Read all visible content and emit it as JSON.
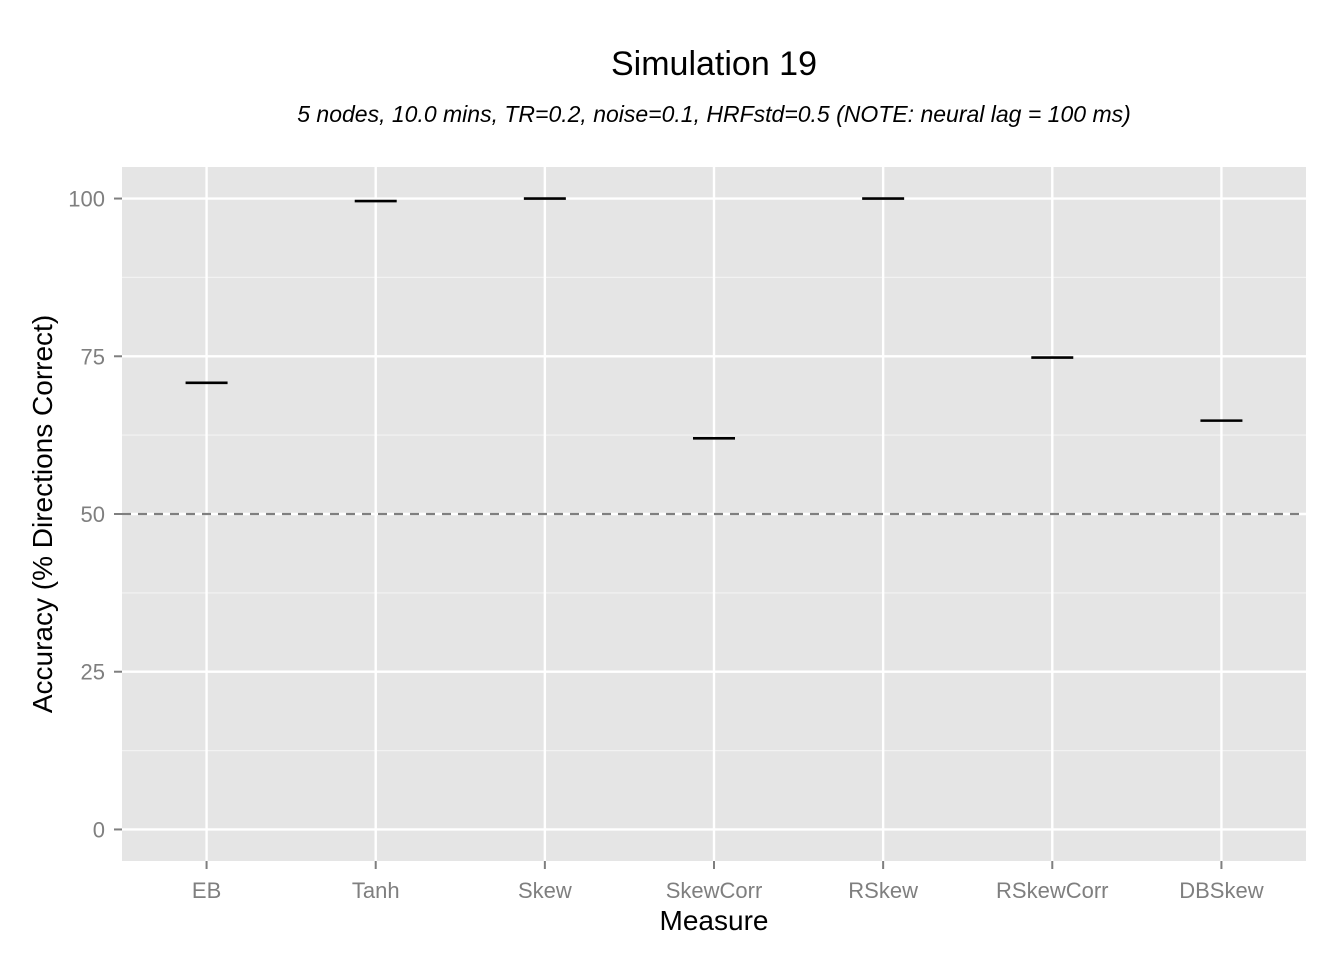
{
  "chart_data": {
    "type": "scatter",
    "title": "Simulation 19",
    "subtitle": "5 nodes, 10.0 mins, TR=0.2, noise=0.1, HRFstd=0.5 (NOTE: neural lag = 100 ms)",
    "xlabel": "Measure",
    "ylabel": "Accuracy (% Directions Correct)",
    "categories": [
      "EB",
      "Tanh",
      "Skew",
      "SkewCorr",
      "RSkew",
      "RSkewCorr",
      "DBSkew"
    ],
    "values": [
      70.8,
      99.6,
      100,
      62,
      100,
      74.8,
      64.8
    ],
    "ylim": [
      -5,
      105
    ],
    "yticks": [
      0,
      25,
      50,
      75,
      100
    ],
    "reference_line": {
      "y": 50,
      "style": "dashed",
      "color": "#7f7f7f"
    },
    "grid": true,
    "colors": {
      "panel": "#e5e5e5",
      "grid": "#ffffff",
      "mark": "#000000",
      "tick_text": "#7f7f7f"
    }
  }
}
